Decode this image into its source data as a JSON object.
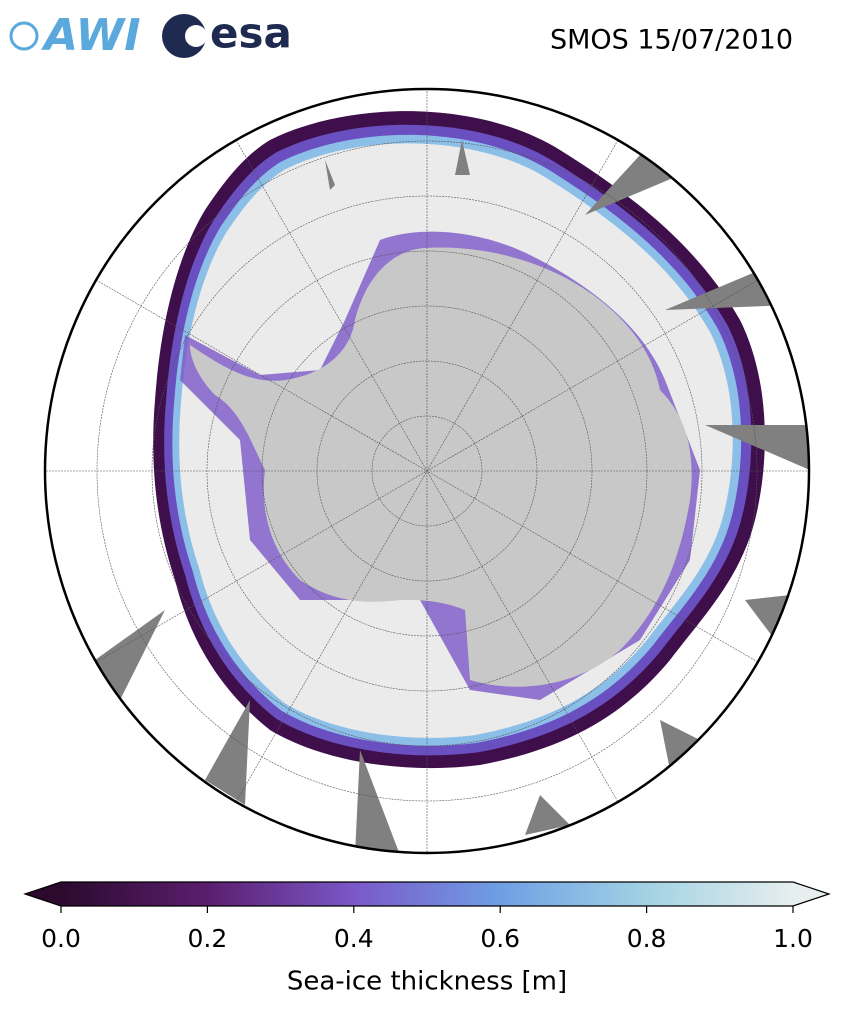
{
  "header": {
    "logos": [
      "AWI",
      "esa"
    ],
    "title": "SMOS 15/07/2010"
  },
  "colorbar": {
    "label": "Sea-ice thickness [m]",
    "lim": [
      0,
      1
    ],
    "ticks": [
      {
        "value": 0,
        "label": "0.0"
      },
      {
        "value": 0.2,
        "label": "0.2"
      },
      {
        "value": 0.4,
        "label": "0.4"
      },
      {
        "value": 0.6,
        "label": "0.6"
      },
      {
        "value": 0.8,
        "label": "0.8"
      },
      {
        "value": 1,
        "label": "1.0"
      }
    ],
    "colors": [
      "#2b0a2e",
      "#5b1e6e",
      "#7a58c8",
      "#6e9fe4",
      "#a2d2e4",
      "#e6eeee"
    ]
  }
}
